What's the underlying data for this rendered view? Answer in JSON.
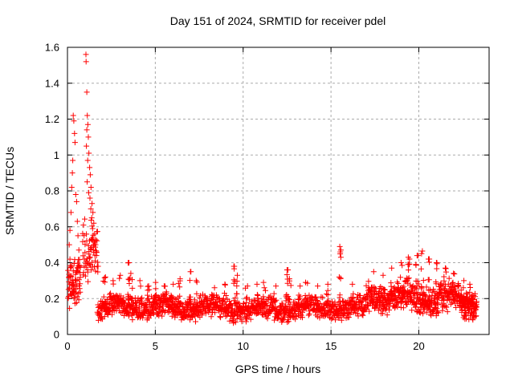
{
  "title": "Day 151 of 2024, SRMTID for receiver pdel",
  "colors": {
    "marker": "#ff0000",
    "grid": "#ababab",
    "border": "#000000",
    "background": "#ffffff",
    "text": "#000000"
  },
  "chart_data": {
    "type": "scatter",
    "title": "Day 151 of 2024, SRMTID for receiver pdel",
    "xlabel": "GPS time / hours",
    "ylabel": "SRMTID / TECUs",
    "xlim": [
      0,
      24
    ],
    "ylim": [
      0,
      1.6
    ],
    "xticks": [
      {
        "v": 0,
        "label": "0"
      },
      {
        "v": 5,
        "label": "5"
      },
      {
        "v": 10,
        "label": "10"
      },
      {
        "v": 15,
        "label": "15"
      },
      {
        "v": 20,
        "label": "20"
      }
    ],
    "yticks": [
      {
        "v": 0,
        "label": "0"
      },
      {
        "v": 0.2,
        "label": "0.2"
      },
      {
        "v": 0.4,
        "label": "0.4"
      },
      {
        "v": 0.6,
        "label": "0.6"
      },
      {
        "v": 0.8,
        "label": "0.8"
      },
      {
        "v": 1.0,
        "label": "1"
      },
      {
        "v": 1.2,
        "label": "1.2"
      },
      {
        "v": 1.4,
        "label": "1.4"
      },
      {
        "v": 1.6,
        "label": "1.6"
      }
    ],
    "grid": true,
    "grid_dash": "3,3",
    "legend": "none",
    "marker": {
      "shape": "plus",
      "size": 7,
      "color": "#ff0000"
    },
    "data_x_end": 23.3,
    "seed": 151,
    "spike_base": 0.17,
    "notable_points": [
      [
        0.33,
        1.22
      ],
      [
        0.36,
        1.19
      ],
      [
        0.4,
        1.12
      ],
      [
        0.43,
        1.07
      ],
      [
        0.3,
        0.97
      ],
      [
        0.28,
        0.9
      ],
      [
        0.24,
        0.82
      ],
      [
        0.47,
        0.78
      ],
      [
        0.52,
        0.74
      ],
      [
        0.2,
        0.68
      ],
      [
        0.56,
        0.63
      ],
      [
        0.14,
        0.58
      ],
      [
        0.6,
        0.55
      ],
      [
        0.1,
        0.5
      ],
      [
        0.65,
        0.47
      ],
      [
        1.05,
        1.56
      ],
      [
        1.06,
        1.52
      ],
      [
        1.1,
        1.35
      ],
      [
        1.13,
        1.22
      ],
      [
        1.16,
        1.17
      ],
      [
        1.1,
        1.14
      ],
      [
        1.19,
        1.1
      ],
      [
        1.08,
        1.05
      ],
      [
        1.22,
        1.01
      ],
      [
        1.15,
        0.97
      ],
      [
        1.26,
        0.93
      ],
      [
        1.3,
        0.89
      ],
      [
        1.12,
        0.85
      ],
      [
        1.34,
        0.82
      ],
      [
        1.21,
        0.79
      ],
      [
        1.28,
        0.76
      ],
      [
        1.4,
        0.73
      ],
      [
        1.33,
        0.7
      ],
      [
        1.45,
        0.68
      ],
      [
        1.38,
        0.65
      ],
      [
        1.5,
        0.62
      ],
      [
        1.43,
        0.59
      ],
      [
        1.55,
        0.56
      ],
      [
        1.36,
        0.53
      ],
      [
        1.6,
        0.5
      ],
      [
        1.48,
        0.47
      ],
      [
        1.65,
        0.44
      ],
      [
        1.58,
        0.41
      ],
      [
        1.7,
        0.38
      ],
      [
        3.5,
        0.4
      ],
      [
        7.0,
        0.35
      ],
      [
        9.5,
        0.38
      ],
      [
        12.5,
        0.36
      ],
      [
        15.5,
        0.49
      ],
      [
        15.53,
        0.46
      ],
      [
        15.56,
        0.43
      ],
      [
        19.4,
        0.43
      ],
      [
        19.9,
        0.44
      ],
      [
        20.2,
        0.465
      ],
      [
        20.55,
        0.42
      ],
      [
        21.0,
        0.4
      ]
    ],
    "baseline_segments": [
      {
        "x0": 0.02,
        "x1": 0.75,
        "n": 75,
        "mean": 0.3,
        "spread": 0.16,
        "min": 0.1,
        "max": 0.88,
        "wave": 0
      },
      {
        "x0": 0.85,
        "x1": 1.75,
        "n": 65,
        "mean": 0.45,
        "spread": 0.22,
        "min": 0.12,
        "max": 0.95,
        "wave": 0
      },
      {
        "x0": 1.7,
        "x1": 8.0,
        "n": 500,
        "mean": 0.155,
        "spread": 0.075,
        "min": 0.055,
        "max": 0.34,
        "wave": 0.02
      },
      {
        "x0": 8.0,
        "x1": 17.0,
        "n": 650,
        "mean": 0.145,
        "spread": 0.07,
        "min": 0.05,
        "max": 0.32,
        "wave": 0.018
      },
      {
        "x0": 17.0,
        "x1": 22.3,
        "n": 450,
        "mean": 0.205,
        "spread": 0.095,
        "min": 0.07,
        "max": 0.4,
        "wave": 0.02
      },
      {
        "x0": 22.3,
        "x1": 23.3,
        "n": 120,
        "mean": 0.16,
        "spread": 0.09,
        "min": 0.05,
        "max": 0.32,
        "wave": 0
      }
    ],
    "spikes": [
      {
        "x": 2.1,
        "top": 0.32,
        "n": 5
      },
      {
        "x": 2.6,
        "top": 0.3,
        "n": 5
      },
      {
        "x": 3.0,
        "top": 0.33,
        "n": 6
      },
      {
        "x": 3.5,
        "top": 0.4,
        "n": 9
      },
      {
        "x": 3.65,
        "top": 0.34,
        "n": 6
      },
      {
        "x": 4.15,
        "top": 0.3,
        "n": 6
      },
      {
        "x": 4.6,
        "top": 0.27,
        "n": 5
      },
      {
        "x": 5.0,
        "top": 0.29,
        "n": 6
      },
      {
        "x": 5.5,
        "top": 0.27,
        "n": 5
      },
      {
        "x": 6.0,
        "top": 0.28,
        "n": 5
      },
      {
        "x": 6.35,
        "top": 0.31,
        "n": 6
      },
      {
        "x": 7.0,
        "top": 0.35,
        "n": 8
      },
      {
        "x": 7.3,
        "top": 0.3,
        "n": 5
      },
      {
        "x": 8.3,
        "top": 0.26,
        "n": 5
      },
      {
        "x": 9.0,
        "top": 0.28,
        "n": 5
      },
      {
        "x": 9.5,
        "top": 0.38,
        "n": 9
      },
      {
        "x": 9.65,
        "top": 0.33,
        "n": 6
      },
      {
        "x": 10.2,
        "top": 0.27,
        "n": 5
      },
      {
        "x": 10.8,
        "top": 0.28,
        "n": 5
      },
      {
        "x": 11.2,
        "top": 0.29,
        "n": 5
      },
      {
        "x": 11.8,
        "top": 0.27,
        "n": 5
      },
      {
        "x": 12.5,
        "top": 0.36,
        "n": 9
      },
      {
        "x": 12.65,
        "top": 0.31,
        "n": 6
      },
      {
        "x": 13.2,
        "top": 0.27,
        "n": 5
      },
      {
        "x": 13.6,
        "top": 0.29,
        "n": 5
      },
      {
        "x": 14.2,
        "top": 0.27,
        "n": 5
      },
      {
        "x": 14.8,
        "top": 0.28,
        "n": 5
      },
      {
        "x": 15.5,
        "top": 0.47,
        "n": 8
      },
      {
        "x": 16.2,
        "top": 0.28,
        "n": 5
      },
      {
        "x": 17.4,
        "top": 0.35,
        "n": 6
      },
      {
        "x": 18.0,
        "top": 0.33,
        "n": 5
      },
      {
        "x": 18.4,
        "top": 0.37,
        "n": 6
      },
      {
        "x": 19.0,
        "top": 0.4,
        "n": 6
      },
      {
        "x": 19.4,
        "top": 0.42,
        "n": 7
      },
      {
        "x": 19.9,
        "top": 0.44,
        "n": 6
      },
      {
        "x": 20.2,
        "top": 0.45,
        "n": 7
      },
      {
        "x": 20.55,
        "top": 0.42,
        "n": 6
      },
      {
        "x": 21.0,
        "top": 0.4,
        "n": 6
      },
      {
        "x": 21.5,
        "top": 0.37,
        "n": 5
      },
      {
        "x": 22.0,
        "top": 0.34,
        "n": 5
      },
      {
        "x": 22.6,
        "top": 0.3,
        "n": 5
      },
      {
        "x": 22.9,
        "top": 0.28,
        "n": 5
      }
    ]
  }
}
